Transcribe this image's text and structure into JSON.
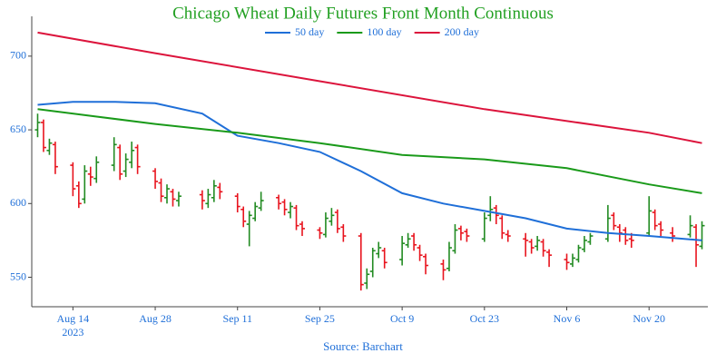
{
  "chart_data": {
    "type": "ohlc",
    "title": "Chicago Wheat Daily Futures Front Month Continuous",
    "source": "Source: Barchart",
    "x": [
      "2023-08-08",
      "2023-08-09",
      "2023-08-10",
      "2023-08-11",
      "2023-08-14",
      "2023-08-15",
      "2023-08-16",
      "2023-08-17",
      "2023-08-18",
      "2023-08-21",
      "2023-08-22",
      "2023-08-23",
      "2023-08-24",
      "2023-08-25",
      "2023-08-28",
      "2023-08-29",
      "2023-08-30",
      "2023-08-31",
      "2023-09-01",
      "2023-09-05",
      "2023-09-06",
      "2023-09-07",
      "2023-09-08",
      "2023-09-11",
      "2023-09-12",
      "2023-09-13",
      "2023-09-14",
      "2023-09-15",
      "2023-09-18",
      "2023-09-19",
      "2023-09-20",
      "2023-09-21",
      "2023-09-22",
      "2023-09-25",
      "2023-09-26",
      "2023-09-27",
      "2023-09-28",
      "2023-09-29",
      "2023-10-02",
      "2023-10-03",
      "2023-10-04",
      "2023-10-05",
      "2023-10-06",
      "2023-10-09",
      "2023-10-10",
      "2023-10-11",
      "2023-10-12",
      "2023-10-13",
      "2023-10-16",
      "2023-10-17",
      "2023-10-18",
      "2023-10-19",
      "2023-10-20",
      "2023-10-23",
      "2023-10-24",
      "2023-10-25",
      "2023-10-26",
      "2023-10-27",
      "2023-10-30",
      "2023-10-31",
      "2023-11-01",
      "2023-11-02",
      "2023-11-03",
      "2023-11-06",
      "2023-11-07",
      "2023-11-08",
      "2023-11-09",
      "2023-11-10",
      "2023-11-13",
      "2023-11-14",
      "2023-11-15",
      "2023-11-16",
      "2023-11-17",
      "2023-11-20",
      "2023-11-21",
      "2023-11-22",
      "2023-11-24",
      "2023-11-27",
      "2023-11-28",
      "2023-11-29"
    ],
    "open": [
      650,
      655,
      636,
      640,
      626,
      612,
      603,
      620,
      617,
      626,
      638,
      622,
      628,
      638,
      622,
      614,
      604,
      608,
      602,
      606,
      600,
      604,
      611,
      605,
      596,
      586,
      590,
      597,
      604,
      601,
      594,
      597,
      586,
      582,
      579,
      588,
      594,
      584,
      578,
      546,
      554,
      566,
      568,
      562,
      572,
      578,
      570,
      564,
      559,
      556,
      568,
      583,
      581,
      576,
      592,
      597,
      590,
      579,
      576,
      574,
      571,
      574,
      567,
      562,
      559,
      562,
      569,
      574,
      576,
      592,
      584,
      582,
      576,
      580,
      594,
      586,
      580,
      579,
      584,
      571
    ],
    "high": [
      661,
      657,
      644,
      642,
      628,
      615,
      626,
      625,
      632,
      645,
      640,
      634,
      642,
      640,
      624,
      617,
      613,
      610,
      608,
      609,
      610,
      616,
      614,
      607,
      598,
      595,
      601,
      608,
      606,
      603,
      601,
      599,
      588,
      584,
      594,
      597,
      596,
      586,
      580,
      556,
      570,
      574,
      570,
      578,
      580,
      580,
      572,
      566,
      562,
      574,
      586,
      585,
      583,
      594,
      605,
      599,
      592,
      582,
      580,
      576,
      578,
      576,
      569,
      566,
      566,
      572,
      578,
      580,
      599,
      594,
      586,
      584,
      580,
      605,
      596,
      588,
      584,
      592,
      586,
      588
    ],
    "low": [
      645,
      635,
      633,
      620,
      605,
      597,
      600,
      612,
      614,
      622,
      616,
      618,
      624,
      620,
      610,
      601,
      600,
      598,
      598,
      596,
      597,
      601,
      603,
      594,
      584,
      571,
      588,
      595,
      596,
      592,
      590,
      582,
      578,
      576,
      577,
      585,
      580,
      574,
      541,
      542,
      550,
      563,
      556,
      558,
      570,
      568,
      561,
      552,
      548,
      554,
      566,
      575,
      574,
      574,
      588,
      586,
      576,
      574,
      564,
      566,
      568,
      564,
      557,
      555,
      557,
      560,
      567,
      572,
      574,
      582,
      574,
      572,
      570,
      578,
      582,
      578,
      574,
      577,
      557,
      569
    ],
    "close": [
      655,
      638,
      641,
      625,
      610,
      600,
      622,
      618,
      628,
      640,
      620,
      630,
      636,
      625,
      615,
      605,
      610,
      603,
      605,
      602,
      606,
      612,
      608,
      598,
      588,
      592,
      598,
      602,
      600,
      596,
      598,
      585,
      583,
      580,
      590,
      592,
      583,
      578,
      545,
      552,
      568,
      570,
      560,
      573,
      576,
      572,
      565,
      558,
      555,
      570,
      582,
      580,
      578,
      590,
      596,
      592,
      580,
      578,
      575,
      570,
      575,
      568,
      565,
      560,
      563,
      570,
      575,
      578,
      590,
      585,
      580,
      575,
      575,
      595,
      585,
      582,
      578,
      585,
      572,
      585
    ],
    "up_color": "#228b22",
    "down_color": "#e8141e",
    "lines": [
      {
        "name": "50 day",
        "color": "#1f6fd8",
        "x": [
          "2023-08-08",
          "2023-08-14",
          "2023-08-21",
          "2023-08-28",
          "2023-09-05",
          "2023-09-11",
          "2023-09-18",
          "2023-09-25",
          "2023-10-02",
          "2023-10-09",
          "2023-10-16",
          "2023-10-23",
          "2023-10-30",
          "2023-11-06",
          "2023-11-13",
          "2023-11-20",
          "2023-11-29"
        ],
        "values": [
          667,
          669,
          669,
          668,
          661,
          646,
          641,
          635,
          622,
          607,
          600,
          595,
          590,
          583,
          580,
          578,
          575
        ]
      },
      {
        "name": "100 day",
        "color": "#1a9a1a",
        "x": [
          "2023-08-08",
          "2023-08-28",
          "2023-09-11",
          "2023-09-25",
          "2023-10-09",
          "2023-10-23",
          "2023-11-06",
          "2023-11-20",
          "2023-11-29"
        ],
        "values": [
          664,
          654,
          648,
          641,
          633,
          630,
          624,
          613,
          607
        ]
      },
      {
        "name": "200 day",
        "color": "#dc143c",
        "x": [
          "2023-08-08",
          "2023-08-28",
          "2023-09-25",
          "2023-10-23",
          "2023-11-20",
          "2023-11-29"
        ],
        "values": [
          716,
          702,
          683,
          664,
          648,
          641
        ]
      }
    ],
    "xlim": [
      "2023-08-07",
      "2023-11-30"
    ],
    "xticks": [
      {
        "value": "2023-08-14",
        "label": "Aug 14"
      },
      {
        "value": "2023-08-28",
        "label": "Aug 28"
      },
      {
        "value": "2023-09-11",
        "label": "Sep 11"
      },
      {
        "value": "2023-09-25",
        "label": "Sep 25"
      },
      {
        "value": "2023-10-09",
        "label": "Oct 9"
      },
      {
        "value": "2023-10-23",
        "label": "Oct 23"
      },
      {
        "value": "2023-11-06",
        "label": "Nov 6"
      },
      {
        "value": "2023-11-20",
        "label": "Nov 20"
      }
    ],
    "xtick_sublabel": "2023",
    "ylim": [
      530,
      727
    ],
    "yticks": [
      550,
      600,
      650,
      700
    ],
    "title_color": "#22a022",
    "tick_color": "#1f6fd8"
  }
}
